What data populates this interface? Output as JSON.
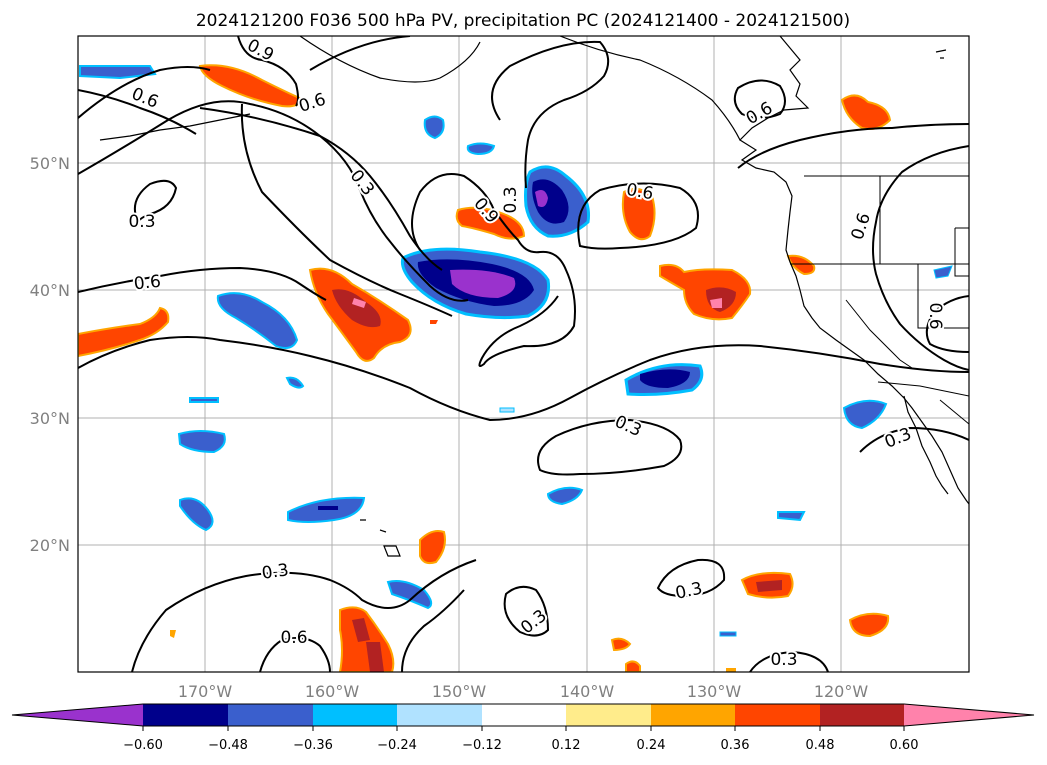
{
  "title": "2024121200 F036 500 hPa PV, precipitation PC (2024121400 - 2024121500)",
  "lat_ticks": [
    "50°N",
    "40°N",
    "30°N",
    "20°N"
  ],
  "lon_ticks": [
    "170°W",
    "160°W",
    "150°W",
    "140°W",
    "130°W",
    "120°W"
  ],
  "colorbar": {
    "ticks": [
      "−0.60",
      "−0.48",
      "−0.36",
      "−0.24",
      "−0.12",
      "0.12",
      "0.24",
      "0.36",
      "0.48",
      "0.60"
    ],
    "colors": [
      "#9a32cd",
      "#00008b",
      "#3a5fcd",
      "#00bfff",
      "#b0e2ff",
      "#ffffff",
      "#ffec8b",
      "#ffa500",
      "#ff4500",
      "#b22222",
      "#ff82ab"
    ]
  },
  "contour_labels": [
    "0.9",
    "0.6",
    "0.6",
    "0.3",
    "0.3",
    "0.9",
    "0.3",
    "0.6",
    "0.6",
    "0.6",
    "0.6",
    "0.6",
    "0.3",
    "0.3",
    "0.3",
    "0.6",
    "0.3",
    "0.3",
    "0.3"
  ]
}
